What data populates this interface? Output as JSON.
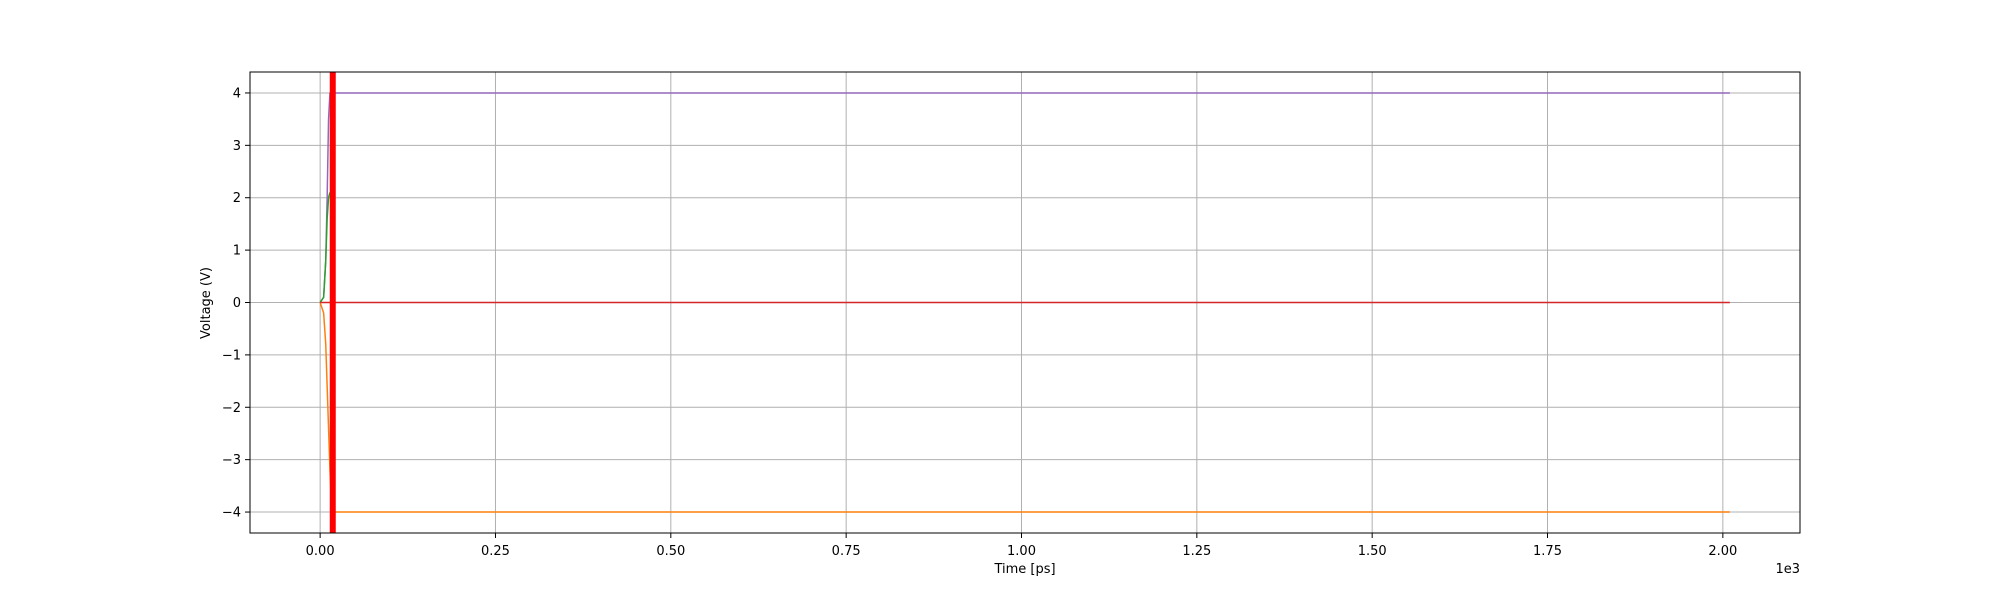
{
  "chart_data": {
    "type": "line",
    "xlabel": "Time [ps]",
    "ylabel": "Voltage (V)",
    "x_offset_label": "1e3",
    "xlim": [
      -100,
      2110
    ],
    "ylim": [
      -4.4,
      4.4
    ],
    "grid": true,
    "x_ticks": [
      0,
      250,
      500,
      750,
      1000,
      1250,
      1500,
      1750,
      2000
    ],
    "x_tick_labels": [
      "0.00",
      "0.25",
      "0.50",
      "0.75",
      "1.00",
      "1.25",
      "1.50",
      "1.75",
      "2.00"
    ],
    "y_ticks": [
      4,
      3,
      2,
      1,
      0,
      -1,
      -2,
      -3,
      -4
    ],
    "y_tick_labels": [
      "4",
      "3",
      "2",
      "1",
      "0",
      "−1",
      "−2",
      "−3",
      "−4"
    ],
    "series": [
      {
        "color": "#9467bd",
        "x": [
          0,
          5,
          8,
          10,
          12,
          14,
          2010
        ],
        "y": [
          0,
          0.1,
          0.8,
          2.0,
          3.5,
          4.0,
          4.0
        ]
      },
      {
        "color": "#2ca02c",
        "x": [
          0,
          5,
          8,
          10,
          12,
          14
        ],
        "y": [
          0,
          0.1,
          0.8,
          1.6,
          2.0,
          2.1
        ]
      },
      {
        "color": "#ff7f0e",
        "x": [
          0,
          5,
          8,
          10,
          12,
          14,
          16,
          18,
          20,
          2010
        ],
        "y": [
          0,
          -0.2,
          -0.8,
          -1.6,
          -2.4,
          -3.2,
          -3.8,
          -4.0,
          -4.0,
          -4.0
        ]
      },
      {
        "color": "#d62728",
        "x": [
          0,
          2010
        ],
        "y": [
          0,
          0
        ]
      }
    ],
    "vertical_marker": {
      "x": 18,
      "color": "#ff0000"
    }
  }
}
